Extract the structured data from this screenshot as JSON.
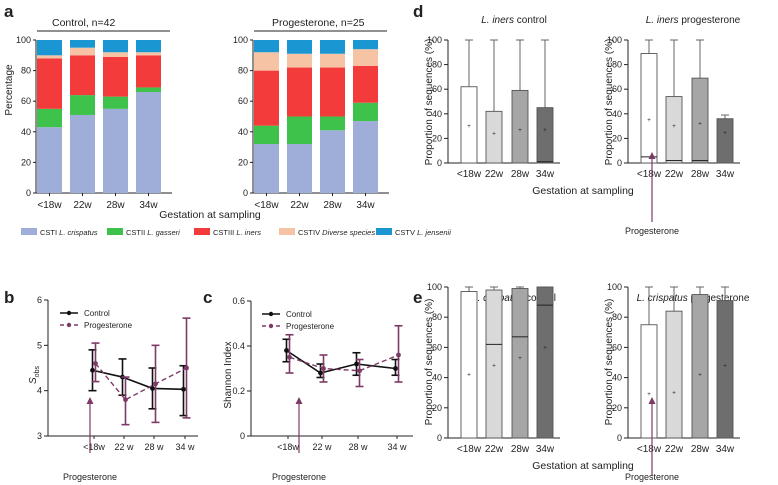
{
  "colors": {
    "cst1": "#9fadd9",
    "cst2": "#3fc24c",
    "cst3": "#f43b3b",
    "cst4": "#f6c3a4",
    "cst5": "#1a96d3",
    "control": "#111111",
    "progesterone": "#7e3a66",
    "box_shades": [
      "#ffffff",
      "#d9d9d9",
      "#a6a6a6",
      "#6e6e6e"
    ]
  },
  "panel_labels": {
    "a": "a",
    "b": "b",
    "c": "c",
    "d": "d",
    "e": "e"
  },
  "chart_data": [
    {
      "id": "a",
      "type": "bar",
      "stacked": true,
      "xlabel": "Gestation at sampling",
      "ylabel": "Percentage",
      "ylim": [
        0,
        100
      ],
      "yticks": [
        "0",
        "20",
        "40",
        "60",
        "80",
        "100"
      ],
      "categories": [
        "<18w",
        "22w",
        "28w",
        "34w"
      ],
      "groups": [
        {
          "name": "Control, n=42",
          "series": [
            {
              "name": "CSTI",
              "values": [
                43,
                51,
                55,
                66
              ]
            },
            {
              "name": "CSTII",
              "values": [
                12,
                13,
                8,
                3
              ]
            },
            {
              "name": "CSTIII",
              "values": [
                33,
                26,
                26,
                21
              ]
            },
            {
              "name": "CSTIV",
              "values": [
                2,
                5,
                3,
                2
              ]
            },
            {
              "name": "CSTV",
              "values": [
                10,
                5,
                8,
                8
              ]
            }
          ]
        },
        {
          "name": "Progesterone, n=25",
          "series": [
            {
              "name": "CSTI",
              "values": [
                32,
                32,
                41,
                47
              ]
            },
            {
              "name": "CSTII",
              "values": [
                12,
                18,
                9,
                12
              ]
            },
            {
              "name": "CSTIII",
              "values": [
                36,
                32,
                32,
                24
              ]
            },
            {
              "name": "CSTIV",
              "values": [
                12,
                9,
                9,
                11
              ]
            },
            {
              "name": "CSTV",
              "values": [
                8,
                9,
                9,
                6
              ]
            }
          ]
        }
      ],
      "legend": [
        {
          "cst": "CSTI",
          "species": "L. crispatus"
        },
        {
          "cst": "CSTII",
          "species": "L. gasseri"
        },
        {
          "cst": "CSTIII",
          "species": "L. iners"
        },
        {
          "cst": "CSTIV",
          "species": "Diverse species"
        },
        {
          "cst": "CSTV",
          "species": "L. jensenii"
        }
      ]
    },
    {
      "id": "b",
      "type": "line",
      "ylabel_main": "S",
      "ylabel_sub": "obs",
      "ylim": [
        3,
        6
      ],
      "yticks": [
        "3",
        "4",
        "5",
        "6"
      ],
      "categories": [
        "<18w",
        "22 w",
        "28 w",
        "34 w"
      ],
      "annotation": "Progesterone",
      "series": [
        {
          "name": "Control",
          "values": [
            4.45,
            4.3,
            4.05,
            4.03
          ],
          "err_low": [
            4.0,
            3.9,
            3.6,
            3.45
          ],
          "err_high": [
            4.9,
            4.7,
            4.5,
            4.55
          ]
        },
        {
          "name": "Progesterone",
          "values": [
            4.6,
            3.8,
            4.15,
            4.5
          ],
          "err_low": [
            4.2,
            3.25,
            3.3,
            3.4
          ],
          "err_high": [
            5.05,
            4.3,
            5.0,
            5.6
          ]
        }
      ]
    },
    {
      "id": "c",
      "type": "line",
      "ylabel": "Shannon Index",
      "ylim": [
        0,
        0.6
      ],
      "yticks": [
        "0",
        "0.2",
        "0.4",
        "0.6"
      ],
      "categories": [
        "<18w",
        "22 w",
        "28 w",
        "34 w"
      ],
      "annotation": "Progesterone",
      "series": [
        {
          "name": "Control",
          "values": [
            0.38,
            0.28,
            0.32,
            0.3
          ],
          "err_low": [
            0.33,
            0.26,
            0.27,
            0.27
          ],
          "err_high": [
            0.43,
            0.32,
            0.37,
            0.34
          ]
        },
        {
          "name": "Progesterone",
          "values": [
            0.35,
            0.3,
            0.29,
            0.36
          ],
          "err_low": [
            0.28,
            0.24,
            0.22,
            0.24
          ],
          "err_high": [
            0.45,
            0.36,
            0.34,
            0.49
          ]
        }
      ]
    },
    {
      "id": "d",
      "type": "box",
      "xlabel": "Gestation at sampling",
      "ylabel": "Proportion of sequences (%)",
      "ylim": [
        0,
        100
      ],
      "yticks": [
        "0",
        "20",
        "40",
        "60",
        "80",
        "100"
      ],
      "categories": [
        "<18w",
        "22w",
        "28w",
        "34w"
      ],
      "annotation": "Progesterone",
      "groups": [
        {
          "title_species": "L. iners",
          "title_group": "control",
          "boxes": [
            {
              "q1": 0,
              "median": 0,
              "q3": 62,
              "max": 100,
              "mean": 30
            },
            {
              "q1": 0,
              "median": 0,
              "q3": 42,
              "max": 100,
              "mean": 24
            },
            {
              "q1": 0,
              "median": 0,
              "q3": 59,
              "max": 100,
              "mean": 27
            },
            {
              "q1": 0,
              "median": 1,
              "q3": 45,
              "max": 100,
              "mean": 27
            }
          ]
        },
        {
          "title_species": "L. iners",
          "title_group": "progesterone",
          "boxes": [
            {
              "q1": 0,
              "median": 5,
              "q3": 89,
              "max": 100,
              "mean": 35
            },
            {
              "q1": 0,
              "median": 2,
              "q3": 54,
              "max": 100,
              "mean": 30
            },
            {
              "q1": 0,
              "median": 2,
              "q3": 69,
              "max": 100,
              "mean": 32
            },
            {
              "q1": 0,
              "median": 0,
              "q3": 36,
              "max": 39,
              "mean": 25
            }
          ]
        }
      ]
    },
    {
      "id": "e",
      "type": "box",
      "xlabel": "Gestation at sampling",
      "ylabel": "Proportion of sequences (%)",
      "ylim": [
        0,
        100
      ],
      "yticks": [
        "0",
        "20",
        "40",
        "60",
        "80",
        "100"
      ],
      "categories": [
        "<18w",
        "22w",
        "28w",
        "34w"
      ],
      "annotation": "Progesterone",
      "groups": [
        {
          "title_species": "L. crispatus",
          "title_group": "control",
          "boxes": [
            {
              "q1": 0,
              "median": 0,
              "q3": 97,
              "max": 100,
              "mean": 42
            },
            {
              "q1": 0,
              "median": 62,
              "q3": 98,
              "max": 100,
              "mean": 48
            },
            {
              "q1": 0,
              "median": 67,
              "q3": 99,
              "max": 100,
              "mean": 53
            },
            {
              "q1": 0,
              "median": 88,
              "q3": 100,
              "max": 100,
              "mean": 60
            }
          ]
        },
        {
          "title_species": "L. crispatus",
          "title_group": "progesterone",
          "boxes": [
            {
              "q1": 0,
              "median": 0,
              "q3": 75,
              "max": 100,
              "mean": 29
            },
            {
              "q1": 0,
              "median": 0,
              "q3": 84,
              "max": 100,
              "mean": 30
            },
            {
              "q1": 0,
              "median": 0,
              "q3": 95,
              "max": 100,
              "mean": 42
            },
            {
              "q1": 0,
              "median": 0,
              "q3": 91,
              "max": 100,
              "mean": 48
            }
          ]
        }
      ]
    }
  ]
}
